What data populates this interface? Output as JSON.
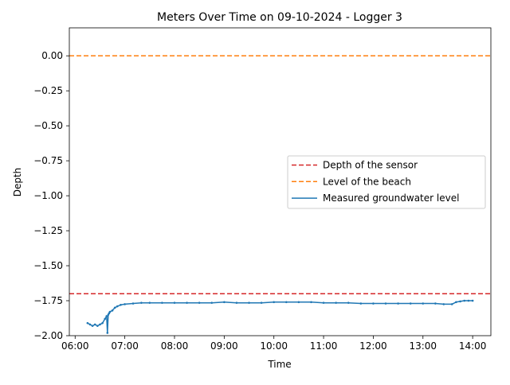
{
  "chart_data": {
    "type": "line",
    "title": "Meters Over Time on 09-10-2024 - Logger 3",
    "xlabel": "Time",
    "ylabel": "Depth",
    "xlim": [
      "05:53",
      "14:22"
    ],
    "ylim": [
      -2.0,
      0.2
    ],
    "x_ticks": [
      "06:00",
      "07:00",
      "08:00",
      "09:00",
      "10:00",
      "11:00",
      "12:00",
      "13:00",
      "14:00"
    ],
    "y_ticks": [
      0.0,
      -0.25,
      -0.5,
      -0.75,
      -1.0,
      -1.25,
      -1.5,
      -1.75,
      -2.0
    ],
    "y_tick_labels": [
      "0.00",
      "−0.25",
      "−0.50",
      "−0.75",
      "−1.00",
      "−1.25",
      "−1.50",
      "−1.75",
      "−2.00"
    ],
    "grid": false,
    "legend_position": "center-right",
    "reference_lines": [
      {
        "name": "Depth of the sensor",
        "y": -1.7,
        "color": "#d62728",
        "style": "dashed"
      },
      {
        "name": "Level of the beach",
        "y": 0.0,
        "color": "#ff7f0e",
        "style": "dashed"
      }
    ],
    "series": [
      {
        "name": "Measured groundwater level",
        "color": "#1f77b4",
        "x": [
          "06:15",
          "06:18",
          "06:21",
          "06:24",
          "06:27",
          "06:30",
          "06:33",
          "06:36",
          "06:38",
          "06:39",
          "06:40",
          "06:41",
          "06:42",
          "06:45",
          "06:48",
          "06:51",
          "06:55",
          "07:00",
          "07:10",
          "07:20",
          "07:30",
          "07:45",
          "08:00",
          "08:15",
          "08:30",
          "08:45",
          "09:00",
          "09:15",
          "09:30",
          "09:45",
          "10:00",
          "10:15",
          "10:30",
          "10:45",
          "11:00",
          "11:15",
          "11:30",
          "11:45",
          "12:00",
          "12:15",
          "12:30",
          "12:45",
          "13:00",
          "13:15",
          "13:25",
          "13:35",
          "13:40",
          "13:45",
          "13:50",
          "13:55",
          "14:00"
        ],
        "y": [
          -1.91,
          -1.92,
          -1.93,
          -1.92,
          -1.93,
          -1.92,
          -1.91,
          -1.88,
          -1.86,
          -1.98,
          -1.85,
          -1.84,
          -1.83,
          -1.82,
          -1.8,
          -1.79,
          -1.78,
          -1.775,
          -1.77,
          -1.765,
          -1.765,
          -1.765,
          -1.765,
          -1.765,
          -1.765,
          -1.765,
          -1.76,
          -1.765,
          -1.765,
          -1.765,
          -1.76,
          -1.76,
          -1.76,
          -1.76,
          -1.765,
          -1.765,
          -1.765,
          -1.77,
          -1.77,
          -1.77,
          -1.77,
          -1.77,
          -1.77,
          -1.77,
          -1.775,
          -1.775,
          -1.76,
          -1.755,
          -1.75,
          -1.75,
          -1.75
        ]
      }
    ],
    "legend": [
      {
        "label": "Depth of the sensor",
        "color": "#d62728",
        "style": "dashed"
      },
      {
        "label": "Level of the beach",
        "color": "#ff7f0e",
        "style": "dashed"
      },
      {
        "label": "Measured groundwater level",
        "color": "#1f77b4",
        "style": "solid"
      }
    ]
  }
}
